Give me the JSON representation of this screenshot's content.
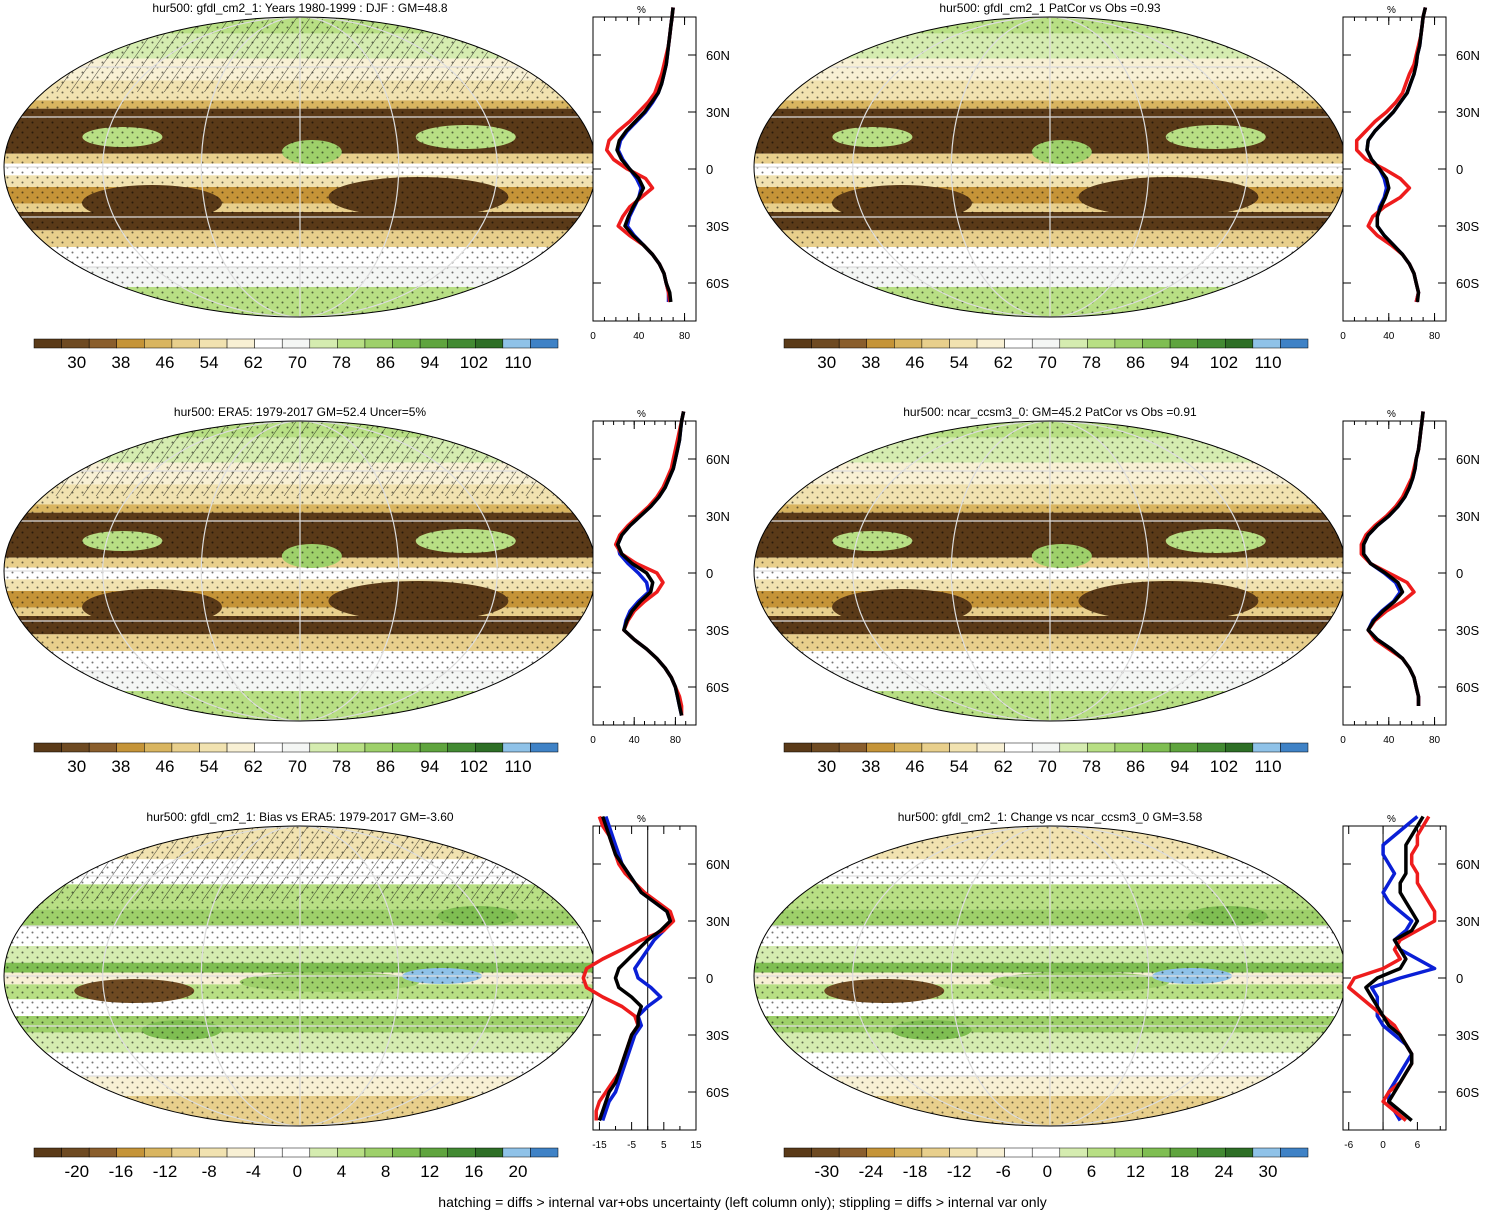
{
  "footer": "hatching = diffs > internal var+obs uncertainty (left column only); stippling = diffs > internal var only",
  "colors": {
    "abs_scale": [
      "#5a3a18",
      "#6e4a22",
      "#8a5e2c",
      "#c59438",
      "#d9b560",
      "#e8cf8c",
      "#f1e2b0",
      "#f8f0d4",
      "#ffffff",
      "#f4f6f4",
      "#d5ecb0",
      "#b8df84",
      "#9ed06a",
      "#7fbe52",
      "#5fa43e",
      "#428a32",
      "#2e6f26",
      "#8fc2e8",
      "#3f82c6"
    ],
    "diff_scale": [
      "#5a3a18",
      "#6e4a22",
      "#8a5e2c",
      "#c59438",
      "#d9b560",
      "#e8cf8c",
      "#f1e2b0",
      "#f8f0d4",
      "#ffffff",
      "#ffffff",
      "#d5ecb0",
      "#b8df84",
      "#9ed06a",
      "#7fbe52",
      "#5fa43e",
      "#428a32",
      "#2e6f26",
      "#8fc2e8",
      "#3f82c6"
    ],
    "profile_line_1": "#0a1fd6",
    "profile_line_2": "#ee1c1c",
    "profile_line_3": "#000000"
  },
  "lat_ticks": [
    "60N",
    "30N",
    "0",
    "30S",
    "60S"
  ],
  "panels": [
    {
      "title": "hur500: gfdl_cm2_1: Years 1980-1999 : DJF : GM=48.8",
      "colorbar_labels": [
        "30",
        "38",
        "46",
        "54",
        "62",
        "70",
        "78",
        "86",
        "94",
        "102",
        "110"
      ],
      "scale": "abs",
      "hatched": true,
      "chart_data": {
        "type": "line",
        "xunit": "%",
        "xticks": [
          "0",
          "40",
          "80"
        ],
        "xlim": [
          0,
          90
        ],
        "lat": [
          85,
          80,
          75,
          70,
          65,
          60,
          55,
          50,
          45,
          40,
          35,
          30,
          25,
          20,
          15,
          10,
          5,
          0,
          -5,
          -10,
          -15,
          -20,
          -25,
          -30,
          -35,
          -40,
          -45,
          -50,
          -55,
          -60,
          -65,
          -70
        ],
        "series": [
          {
            "color_key": "profile_line_1",
            "values": [
              70,
              69,
              68,
              67,
              66,
              65,
              64,
              62,
              60,
              57,
              52,
              46,
              38,
              30,
              24,
              22,
              26,
              32,
              38,
              42,
              40,
              36,
              32,
              30,
              36,
              44,
              52,
              58,
              62,
              64,
              66,
              66
            ]
          },
          {
            "color_key": "profile_line_2",
            "values": [
              70,
              69,
              68,
              67,
              66,
              64,
              62,
              60,
              57,
              54,
              48,
              40,
              32,
              22,
              14,
              12,
              18,
              30,
              46,
              52,
              42,
              32,
              26,
              22,
              32,
              44,
              52,
              58,
              62,
              64,
              66,
              67
            ]
          },
          {
            "color_key": "profile_line_3",
            "values": [
              70,
              69,
              68,
              67,
              66,
              65,
              64,
              62,
              60,
              57,
              51,
              45,
              37,
              29,
              23,
              21,
              25,
              32,
              40,
              44,
              40,
              35,
              31,
              28,
              35,
              44,
              52,
              58,
              62,
              64,
              67,
              68
            ]
          }
        ]
      }
    },
    {
      "title": "hur500: gfdl_cm2_1 PatCor vs Obs =0.93",
      "colorbar_labels": [
        "30",
        "38",
        "46",
        "54",
        "62",
        "70",
        "78",
        "86",
        "94",
        "102",
        "110"
      ],
      "scale": "abs",
      "hatched": false,
      "chart_data": {
        "type": "line",
        "xunit": "%",
        "xticks": [
          "0",
          "40",
          "80"
        ],
        "xlim": [
          0,
          90
        ],
        "lat": [
          85,
          80,
          75,
          70,
          65,
          60,
          55,
          50,
          45,
          40,
          35,
          30,
          25,
          20,
          15,
          10,
          5,
          0,
          -5,
          -10,
          -15,
          -20,
          -25,
          -30,
          -35,
          -40,
          -45,
          -50,
          -55,
          -60,
          -65,
          -70
        ],
        "series": [
          {
            "color_key": "profile_line_1",
            "values": [
              72,
              70,
              69,
              68,
              67,
              65,
              64,
              62,
              59,
              56,
              50,
              44,
              36,
              28,
              22,
              21,
              25,
              32,
              36,
              38,
              36,
              32,
              30,
              30,
              36,
              44,
              52,
              58,
              62,
              64,
              66,
              64
            ]
          },
          {
            "color_key": "profile_line_2",
            "values": [
              72,
              70,
              69,
              68,
              66,
              64,
              62,
              58,
              55,
              52,
              46,
              38,
              28,
              20,
              12,
              12,
              20,
              36,
              50,
              58,
              50,
              36,
              26,
              22,
              30,
              42,
              52,
              58,
              62,
              64,
              66,
              64
            ]
          },
          {
            "color_key": "profile_line_3",
            "values": [
              72,
              70,
              69,
              68,
              67,
              65,
              64,
              62,
              59,
              56,
              50,
              44,
              36,
              28,
              22,
              21,
              25,
              32,
              38,
              40,
              37,
              33,
              30,
              30,
              36,
              44,
              52,
              58,
              62,
              64,
              66,
              65
            ]
          }
        ]
      }
    },
    {
      "title": "hur500: ERA5: 1979-2017 GM=52.4 Uncer=5%",
      "colorbar_labels": [
        "30",
        "38",
        "46",
        "54",
        "62",
        "70",
        "78",
        "86",
        "94",
        "102",
        "110"
      ],
      "scale": "abs",
      "hatched": true,
      "chart_data": {
        "type": "line",
        "xunit": "%",
        "xticks": [
          "0",
          "40",
          "80"
        ],
        "xlim": [
          0,
          100
        ],
        "lat": [
          85,
          80,
          75,
          70,
          65,
          60,
          55,
          50,
          45,
          40,
          35,
          30,
          25,
          20,
          15,
          10,
          5,
          0,
          -5,
          -10,
          -15,
          -20,
          -25,
          -30,
          -35,
          -40,
          -45,
          -50,
          -55,
          -60,
          -65,
          -70,
          -75
        ],
        "series": [
          {
            "color_key": "profile_line_1",
            "values": [
              88,
              86,
              85,
              84,
              82,
              80,
              78,
              74,
              70,
              64,
              56,
              46,
              36,
              28,
              24,
              26,
              34,
              44,
              52,
              54,
              44,
              36,
              32,
              30,
              40,
              52,
              62,
              70,
              76,
              80,
              82,
              84,
              86
            ]
          },
          {
            "color_key": "profile_line_2",
            "values": [
              88,
              86,
              84,
              82,
              80,
              78,
              76,
              72,
              68,
              62,
              54,
              44,
              34,
              26,
              22,
              28,
              42,
              62,
              68,
              62,
              50,
              40,
              34,
              30,
              40,
              52,
              62,
              70,
              76,
              80,
              84,
              86,
              86
            ]
          },
          {
            "color_key": "profile_line_3",
            "values": [
              88,
              86,
              85,
              84,
              82,
              80,
              78,
              74,
              70,
              64,
              56,
              46,
              36,
              28,
              24,
              28,
              38,
              52,
              58,
              56,
              46,
              38,
              33,
              30,
              40,
              52,
              62,
              70,
              76,
              80,
              82,
              84,
              86
            ]
          }
        ]
      }
    },
    {
      "title": "hur500: ncar_ccsm3_0: GM=45.2 PatCor vs Obs =0.91",
      "colorbar_labels": [
        "30",
        "38",
        "46",
        "54",
        "62",
        "70",
        "78",
        "86",
        "94",
        "102",
        "110"
      ],
      "scale": "abs",
      "hatched": false,
      "chart_data": {
        "type": "line",
        "xunit": "%",
        "xticks": [
          "0",
          "40",
          "80"
        ],
        "xlim": [
          0,
          90
        ],
        "lat": [
          85,
          80,
          75,
          70,
          65,
          60,
          55,
          50,
          45,
          40,
          35,
          30,
          25,
          20,
          15,
          10,
          5,
          0,
          -5,
          -10,
          -15,
          -20,
          -25,
          -30,
          -35,
          -40,
          -45,
          -50,
          -55,
          -60,
          -65,
          -70
        ],
        "series": [
          {
            "color_key": "profile_line_1",
            "values": [
              70,
              69,
              68,
              67,
              66,
              64,
              63,
              61,
              58,
              54,
              48,
              40,
              30,
              22,
              18,
              18,
              24,
              36,
              46,
              50,
              44,
              34,
              26,
              22,
              30,
              42,
              52,
              58,
              62,
              64,
              66,
              66
            ]
          },
          {
            "color_key": "profile_line_2",
            "values": [
              70,
              69,
              68,
              67,
              66,
              64,
              62,
              60,
              56,
              52,
              46,
              38,
              28,
              20,
              16,
              16,
              24,
              40,
              56,
              62,
              52,
              38,
              28,
              22,
              28,
              40,
              52,
              58,
              62,
              64,
              66,
              66
            ]
          },
          {
            "color_key": "profile_line_3",
            "values": [
              70,
              69,
              68,
              67,
              66,
              64,
              63,
              61,
              58,
              54,
              48,
              40,
              30,
              22,
              18,
              18,
              24,
              37,
              48,
              52,
              45,
              35,
              27,
              22,
              30,
              42,
              52,
              58,
              62,
              64,
              66,
              66
            ]
          }
        ]
      }
    },
    {
      "title": "hur500: gfdl_cm2_1: Bias vs ERA5: 1979-2017 GM=-3.60",
      "colorbar_labels": [
        "-20",
        "-16",
        "-12",
        "-8",
        "-4",
        "0",
        "4",
        "8",
        "12",
        "16",
        "20"
      ],
      "scale": "diff",
      "hatched": true,
      "chart_data": {
        "type": "line",
        "xunit": "%",
        "xticks": [
          "-15",
          "-5",
          "5",
          "15"
        ],
        "xlim": [
          -17,
          15
        ],
        "zero_line": true,
        "lat": [
          85,
          80,
          75,
          70,
          65,
          60,
          55,
          50,
          45,
          40,
          35,
          30,
          25,
          20,
          15,
          10,
          5,
          0,
          -5,
          -10,
          -15,
          -20,
          -25,
          -30,
          -35,
          -40,
          -45,
          -50,
          -55,
          -60,
          -65,
          -70,
          -75
        ],
        "series": [
          {
            "color_key": "profile_line_1",
            "values": [
              -13,
              -12,
              -11,
              -10,
              -9,
              -8,
              -6,
              -4,
              -2,
              2,
              6,
              7,
              5,
              2,
              0,
              -2,
              -4,
              -3,
              1,
              4,
              0,
              -3,
              -2,
              -4,
              -5,
              -6,
              -7,
              -8,
              -9,
              -10,
              -12,
              -13,
              -14
            ]
          },
          {
            "color_key": "profile_line_2",
            "values": [
              -15,
              -14,
              -12,
              -11,
              -10,
              -9,
              -7,
              -4,
              -1,
              3,
              7,
              8,
              5,
              -2,
              -8,
              -14,
              -19,
              -20,
              -19,
              -14,
              -8,
              -4,
              -3,
              -5,
              -6,
              -7,
              -8,
              -9,
              -11,
              -13,
              -15,
              -16,
              -16
            ]
          },
          {
            "color_key": "profile_line_3",
            "values": [
              -14,
              -13,
              -12,
              -11,
              -10,
              -8,
              -6,
              -4,
              -2,
              2,
              6,
              7,
              4,
              0,
              -3,
              -6,
              -9,
              -10,
              -9,
              -5,
              -2,
              -3,
              -3,
              -5,
              -6,
              -7,
              -8,
              -9,
              -10,
              -12,
              -13,
              -14,
              -15
            ]
          }
        ]
      }
    },
    {
      "title": "hur500: gfdl_cm2_1: Change vs ncar_ccsm3_0 GM=3.58",
      "colorbar_labels": [
        "-30",
        "-24",
        "-18",
        "-12",
        "-6",
        "0",
        "6",
        "12",
        "18",
        "24",
        "30"
      ],
      "scale": "diff",
      "hatched": false,
      "chart_data": {
        "type": "line",
        "xunit": "%",
        "xticks": [
          "-6",
          "0",
          "6"
        ],
        "xlim": [
          -7,
          11
        ],
        "zero_line": true,
        "lat": [
          85,
          80,
          75,
          70,
          65,
          60,
          55,
          50,
          45,
          40,
          35,
          30,
          25,
          20,
          15,
          10,
          5,
          0,
          -5,
          -10,
          -15,
          -20,
          -25,
          -30,
          -35,
          -40,
          -45,
          -50,
          -55,
          -60,
          -65,
          -70,
          -75
        ],
        "series": [
          {
            "color_key": "profile_line_1",
            "values": [
              6,
              4,
              2,
              0,
              0,
              1,
              2,
              1,
              0,
              1,
              3,
              5,
              4,
              2,
              3,
              6,
              9,
              3,
              -2,
              -1,
              -1,
              -1,
              0,
              2,
              4,
              5,
              4,
              3,
              2,
              1,
              1,
              2,
              3
            ]
          },
          {
            "color_key": "profile_line_2",
            "values": [
              8,
              7,
              6,
              6,
              5,
              5,
              6,
              6,
              7,
              8,
              9,
              9,
              6,
              3,
              2,
              3,
              0,
              -5,
              -6,
              -4,
              -2,
              0,
              2,
              3,
              4,
              5,
              5,
              4,
              3,
              1,
              0,
              2,
              4
            ]
          },
          {
            "color_key": "profile_line_3",
            "values": [
              7,
              6,
              5,
              4,
              4,
              4,
              4,
              3,
              3,
              4,
              5,
              6,
              5,
              2,
              3,
              4,
              3,
              -1,
              -3,
              -2,
              -1,
              0,
              1,
              3,
              4,
              5,
              5,
              4,
              3,
              2,
              1,
              3,
              5
            ]
          }
        ]
      }
    }
  ]
}
